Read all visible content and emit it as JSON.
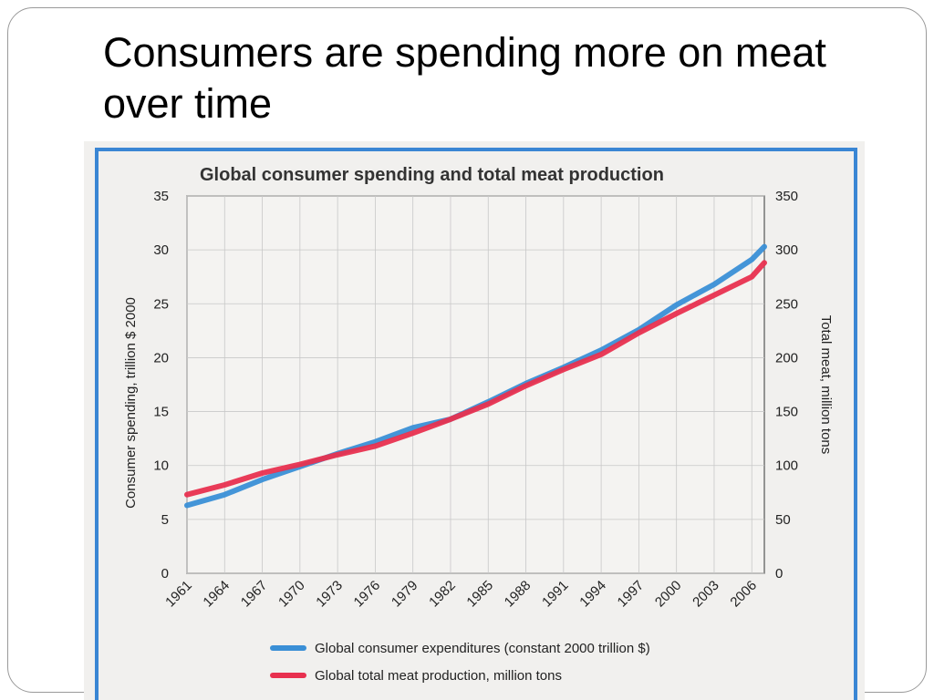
{
  "slide": {
    "title": "Consumers are spending more on meat over time"
  },
  "chart_data": {
    "type": "line",
    "title": "Global consumer spending and total meat production",
    "xlabel": "",
    "ylabel_left": "Consumer spending, trillion $ 2000",
    "ylabel_right": "Total meat, million tons",
    "ylim_left": [
      0,
      35
    ],
    "ylim_right": [
      0,
      350
    ],
    "yticks_left": [
      0,
      5,
      10,
      15,
      20,
      25,
      30,
      35
    ],
    "yticks_right": [
      0,
      50,
      100,
      150,
      200,
      250,
      300,
      350
    ],
    "xticks": [
      "1961",
      "1964",
      "1967",
      "1970",
      "1973",
      "1976",
      "1979",
      "1982",
      "1985",
      "1988",
      "1991",
      "1994",
      "1997",
      "2000",
      "2003",
      "2006"
    ],
    "xlim": [
      1961,
      2007
    ],
    "grid": true,
    "legend": "bottom",
    "series": [
      {
        "name": "Global consumer expenditures  (constant 2000 trillion $)",
        "axis": "left",
        "color": "#3a8fd6",
        "x": [
          1961,
          1964,
          1967,
          1970,
          1973,
          1976,
          1979,
          1982,
          1985,
          1988,
          1991,
          1994,
          1997,
          2000,
          2003,
          2006,
          2007
        ],
        "values": [
          6.3,
          7.3,
          8.7,
          9.9,
          11.1,
          12.2,
          13.5,
          14.3,
          15.9,
          17.6,
          19.1,
          20.7,
          22.6,
          24.9,
          26.8,
          29.1,
          30.3
        ]
      },
      {
        "name": "Global total meat production, million tons",
        "axis": "right",
        "color": "#e8304f",
        "x": [
          1961,
          1964,
          1967,
          1970,
          1973,
          1976,
          1979,
          1982,
          1985,
          1988,
          1991,
          1994,
          1997,
          2000,
          2003,
          2006,
          2007
        ],
        "values": [
          73,
          82,
          93,
          101,
          110,
          118,
          130,
          143,
          157,
          174,
          189,
          203,
          223,
          241,
          258,
          275,
          288
        ]
      }
    ]
  }
}
